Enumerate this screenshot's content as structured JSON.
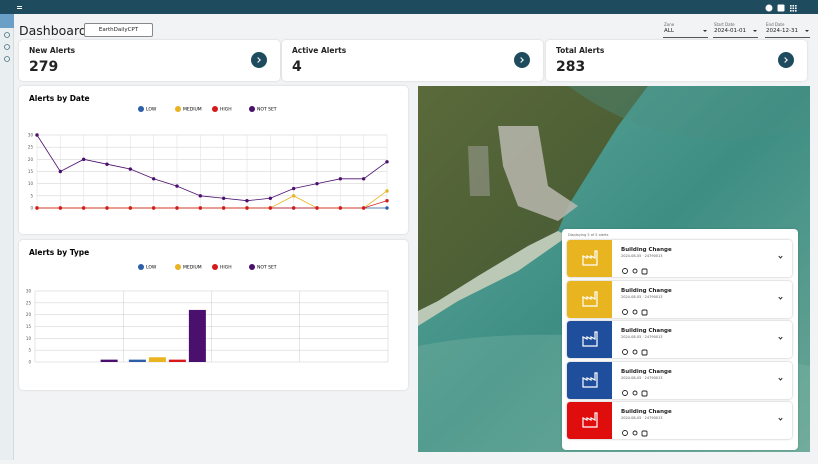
{
  "header": {
    "title": "Dashboard",
    "button": "EarthDailyCPT"
  },
  "filters": [
    {
      "label": "Zone",
      "value": "ALL"
    },
    {
      "label": "Start Date",
      "value": "2024-01-01"
    },
    {
      "label": "End Date",
      "value": "2024-12-31"
    }
  ],
  "cards": [
    {
      "title": "New Alerts",
      "value": 279
    },
    {
      "title": "Active Alerts",
      "value": 4
    },
    {
      "title": "Total Alerts",
      "value": 283
    }
  ],
  "chart_data": [
    {
      "type": "line",
      "title": "Alerts by Date",
      "categories": [
        null,
        null,
        null,
        null,
        null,
        null,
        null,
        null,
        null,
        null,
        null,
        null,
        null,
        null,
        null,
        null
      ],
      "series": [
        {
          "name": "LOW",
          "color": "#2e5ea8",
          "values": [
            0,
            0,
            0,
            0,
            0,
            0,
            0,
            0,
            0,
            0,
            0,
            0,
            0,
            0,
            0,
            0
          ]
        },
        {
          "name": "MEDIUM",
          "color": "#e8b420",
          "values": [
            0,
            0,
            0,
            0,
            0,
            0,
            0,
            0,
            0,
            0,
            0,
            5,
            0,
            0,
            0,
            7
          ]
        },
        {
          "name": "HIGH",
          "color": "#d7191c",
          "values": [
            0,
            0,
            0,
            0,
            0,
            0,
            0,
            0,
            0,
            0,
            0,
            0,
            0,
            0,
            0,
            3
          ]
        },
        {
          "name": "NOT SET",
          "color": "#4b0f6e",
          "values": [
            30,
            15,
            20,
            18,
            16,
            12,
            9,
            5,
            4,
            3,
            4,
            8,
            10,
            12,
            12,
            19
          ]
        }
      ],
      "ylim": [
        0,
        30
      ],
      "yticks": [
        0,
        5,
        10,
        15,
        20,
        25,
        30
      ],
      "grid": true,
      "legend": "top"
    },
    {
      "type": "bar",
      "title": "Alerts by Type",
      "categories": [
        null,
        null,
        null,
        null
      ],
      "series": [
        {
          "name": "LOW",
          "color": "#2e5ea8",
          "values": [
            0,
            1,
            0,
            0
          ]
        },
        {
          "name": "MEDIUM",
          "color": "#e8b420",
          "values": [
            0,
            2,
            0,
            0
          ]
        },
        {
          "name": "HIGH",
          "color": "#d7191c",
          "values": [
            0,
            1,
            0,
            0
          ]
        },
        {
          "name": "NOT SET",
          "color": "#4b0f6e",
          "values": [
            1,
            22,
            0,
            0
          ]
        }
      ],
      "ylim": [
        0,
        30
      ],
      "yticks": [
        0,
        5,
        10,
        15,
        20,
        25,
        30
      ],
      "grid": true,
      "legend": "top"
    }
  ],
  "alert_list": {
    "caption": "Displaying 5 of 5 alerts",
    "items": [
      {
        "title": "Building Change",
        "subtitle": "2024-08-05 · 24790013",
        "color": "#e8b420"
      },
      {
        "title": "Building Change",
        "subtitle": "2024-08-05 · 24790013",
        "color": "#e8b420"
      },
      {
        "title": "Building Change",
        "subtitle": "2024-08-05 · 24790013",
        "color": "#1f4e9c"
      },
      {
        "title": "Building Change",
        "subtitle": "2024-08-05 · 24790013",
        "color": "#1f4e9c"
      },
      {
        "title": "Building Change",
        "subtitle": "2024-08-05 · 24790013",
        "color": "#e00d0d"
      }
    ]
  }
}
